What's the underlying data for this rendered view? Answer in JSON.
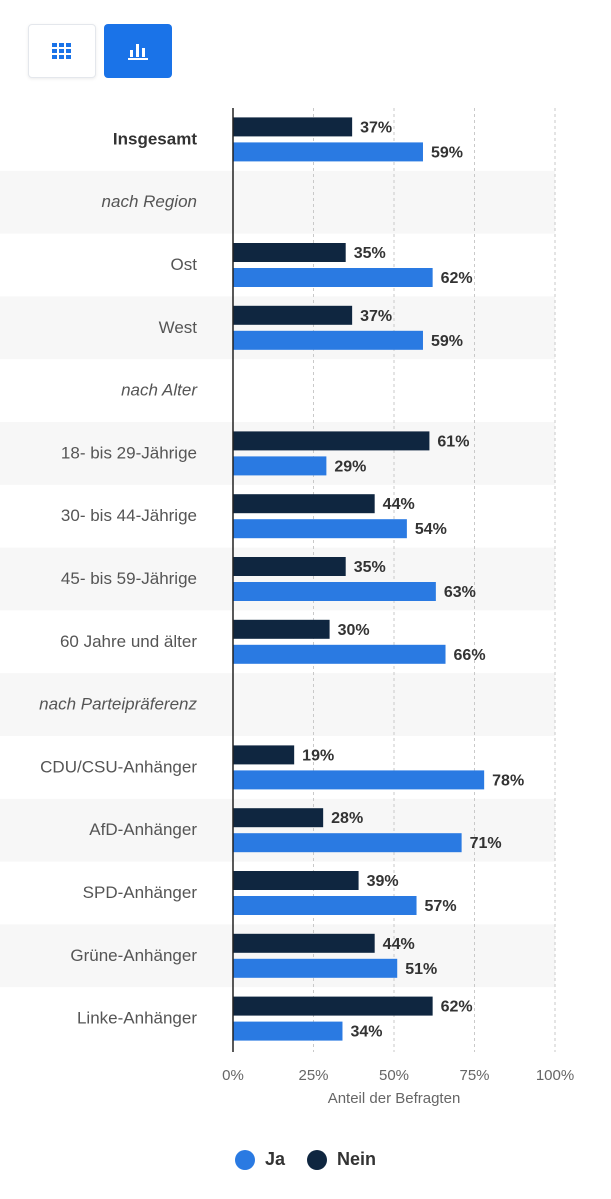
{
  "view_toggle": {
    "table_icon": "grid-icon",
    "chart_icon": "bar-chart-icon",
    "active": "chart"
  },
  "colors": {
    "ja": "#2a7ae2",
    "nein": "#0f2640",
    "button_active": "#1a73e8",
    "band": "#f7f7f7"
  },
  "legend": {
    "items": [
      {
        "label": "Ja",
        "color": "#2a7ae2"
      },
      {
        "label": "Nein",
        "color": "#0f2640"
      }
    ]
  },
  "chart_data": {
    "type": "bar",
    "orientation": "horizontal",
    "xlabel": "Anteil der Befragten",
    "xlim": [
      0,
      100
    ],
    "x_ticks": [
      "0%",
      "25%",
      "50%",
      "75%",
      "100%"
    ],
    "grid": true,
    "legend_position": "bottom",
    "categories": [
      "Insgesamt",
      "nach Region",
      "Ost",
      "West",
      "nach Alter",
      "18- bis 29-Jährige",
      "30- bis 44-Jährige",
      "45- bis 59-Jährige",
      "60 Jahre und älter",
      "nach Parteipräferenz",
      "CDU/CSU-Anhänger",
      "AfD-Anhänger",
      "SPD-Anhänger",
      "Grüne-Anhänger",
      "Linke-Anhänger"
    ],
    "category_style": [
      "bold",
      "italic",
      "normal",
      "normal",
      "italic",
      "normal",
      "normal",
      "normal",
      "normal",
      "italic",
      "normal",
      "normal",
      "normal",
      "normal",
      "normal"
    ],
    "series": [
      {
        "name": "Nein",
        "values": [
          37,
          null,
          35,
          37,
          null,
          61,
          44,
          35,
          30,
          null,
          19,
          28,
          39,
          44,
          62
        ]
      },
      {
        "name": "Ja",
        "values": [
          59,
          null,
          62,
          59,
          null,
          29,
          54,
          63,
          66,
          null,
          78,
          71,
          57,
          51,
          34
        ]
      }
    ],
    "value_suffix": "%"
  }
}
